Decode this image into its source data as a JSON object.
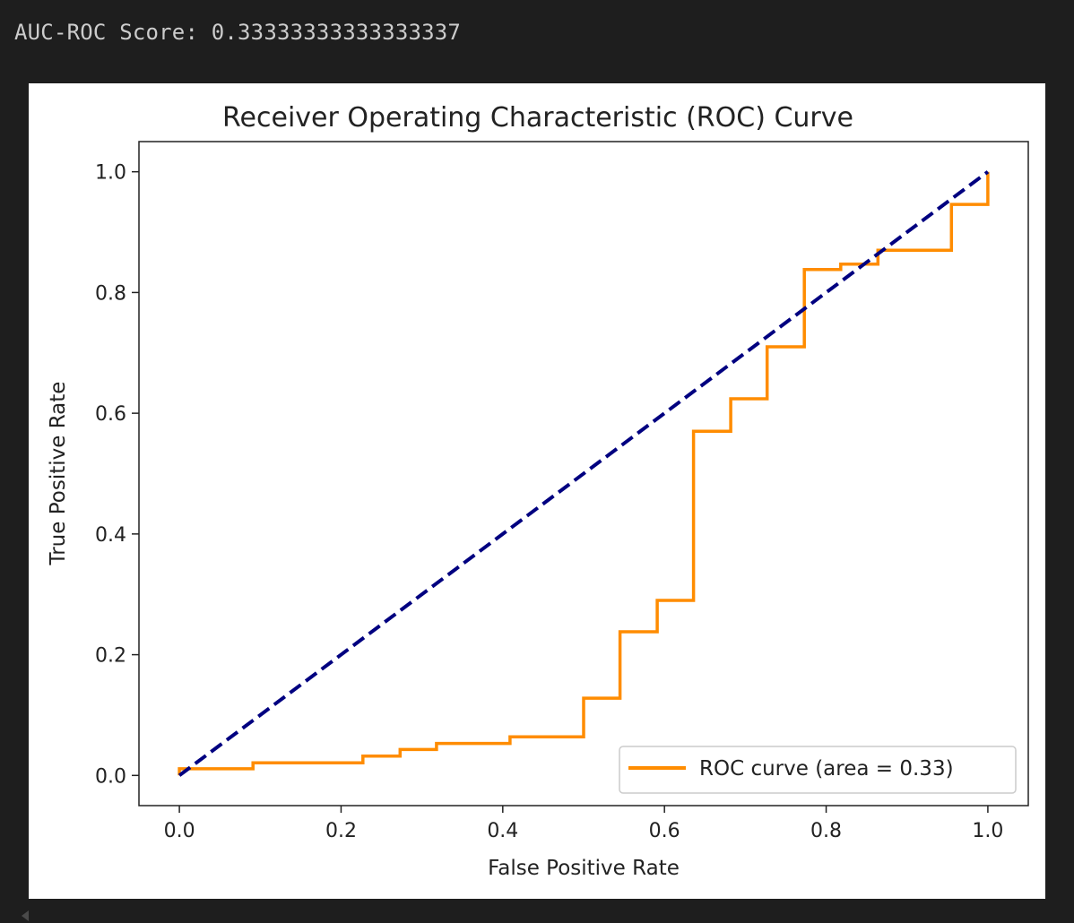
{
  "output": {
    "text": "AUC-ROC Score: 0.33333333333333337"
  },
  "chart_data": {
    "type": "line",
    "title": "Receiver Operating Characteristic (ROC) Curve",
    "xlabel": "False Positive Rate",
    "ylabel": "True Positive Rate",
    "xlim": [
      -0.05,
      1.05
    ],
    "ylim": [
      -0.05,
      1.05
    ],
    "xticks": [
      "0.0",
      "0.2",
      "0.4",
      "0.6",
      "0.8",
      "1.0"
    ],
    "yticks": [
      "0.0",
      "0.2",
      "0.4",
      "0.6",
      "0.8",
      "1.0"
    ],
    "grid": false,
    "legend_position": "lower right",
    "series": [
      {
        "name": "ROC curve (area = 0.33)",
        "color": "#ff8c00",
        "style": "step",
        "x": [
          0.0,
          0.0,
          0.091,
          0.091,
          0.227,
          0.227,
          0.273,
          0.273,
          0.318,
          0.318,
          0.409,
          0.409,
          0.5,
          0.5,
          0.545,
          0.545,
          0.591,
          0.591,
          0.636,
          0.636,
          0.682,
          0.682,
          0.727,
          0.727,
          0.773,
          0.773,
          0.818,
          0.818,
          0.864,
          0.864,
          0.955,
          0.955,
          1.0,
          1.0
        ],
        "y": [
          0.0,
          0.011,
          0.011,
          0.021,
          0.021,
          0.032,
          0.032,
          0.043,
          0.043,
          0.053,
          0.053,
          0.064,
          0.064,
          0.128,
          0.128,
          0.238,
          0.238,
          0.29,
          0.29,
          0.57,
          0.57,
          0.624,
          0.624,
          0.71,
          0.71,
          0.838,
          0.838,
          0.847,
          0.847,
          0.87,
          0.87,
          0.946,
          0.946,
          1.0
        ]
      },
      {
        "name": "",
        "color": "#000080",
        "style": "dashed",
        "x": [
          0,
          1
        ],
        "y": [
          0,
          1
        ]
      }
    ]
  }
}
